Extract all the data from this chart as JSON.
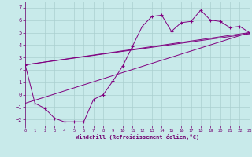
{
  "xlabel": "Windchill (Refroidissement éolien,°C)",
  "bg_color": "#c8eaea",
  "line_color": "#800080",
  "grid_color": "#aacfcf",
  "xlim": [
    0,
    23
  ],
  "ylim": [
    -2.5,
    7.5
  ],
  "xticks": [
    0,
    1,
    2,
    3,
    4,
    5,
    6,
    7,
    8,
    9,
    10,
    11,
    12,
    13,
    14,
    15,
    16,
    17,
    18,
    19,
    20,
    21,
    22,
    23
  ],
  "yticks": [
    -2,
    -1,
    0,
    1,
    2,
    3,
    4,
    5,
    6,
    7
  ],
  "series1_x": [
    0,
    1,
    2,
    3,
    4,
    5,
    6,
    7,
    8,
    9,
    10,
    11,
    12,
    13,
    14,
    15,
    16,
    17,
    18,
    19,
    20,
    21,
    22,
    23
  ],
  "series1_y": [
    2.4,
    -0.7,
    -1.1,
    -1.9,
    -2.2,
    -2.2,
    -2.2,
    -0.4,
    0.0,
    1.1,
    2.3,
    3.9,
    5.5,
    6.3,
    6.4,
    5.1,
    5.8,
    5.9,
    6.8,
    6.0,
    5.9,
    5.4,
    5.5,
    5.0
  ],
  "series2_x": [
    0,
    23
  ],
  "series2_y": [
    2.4,
    5.0
  ],
  "series3_x": [
    0,
    23
  ],
  "series3_y": [
    -0.7,
    5.0
  ],
  "series4_x": [
    0,
    23
  ],
  "series4_y": [
    2.4,
    4.9
  ]
}
